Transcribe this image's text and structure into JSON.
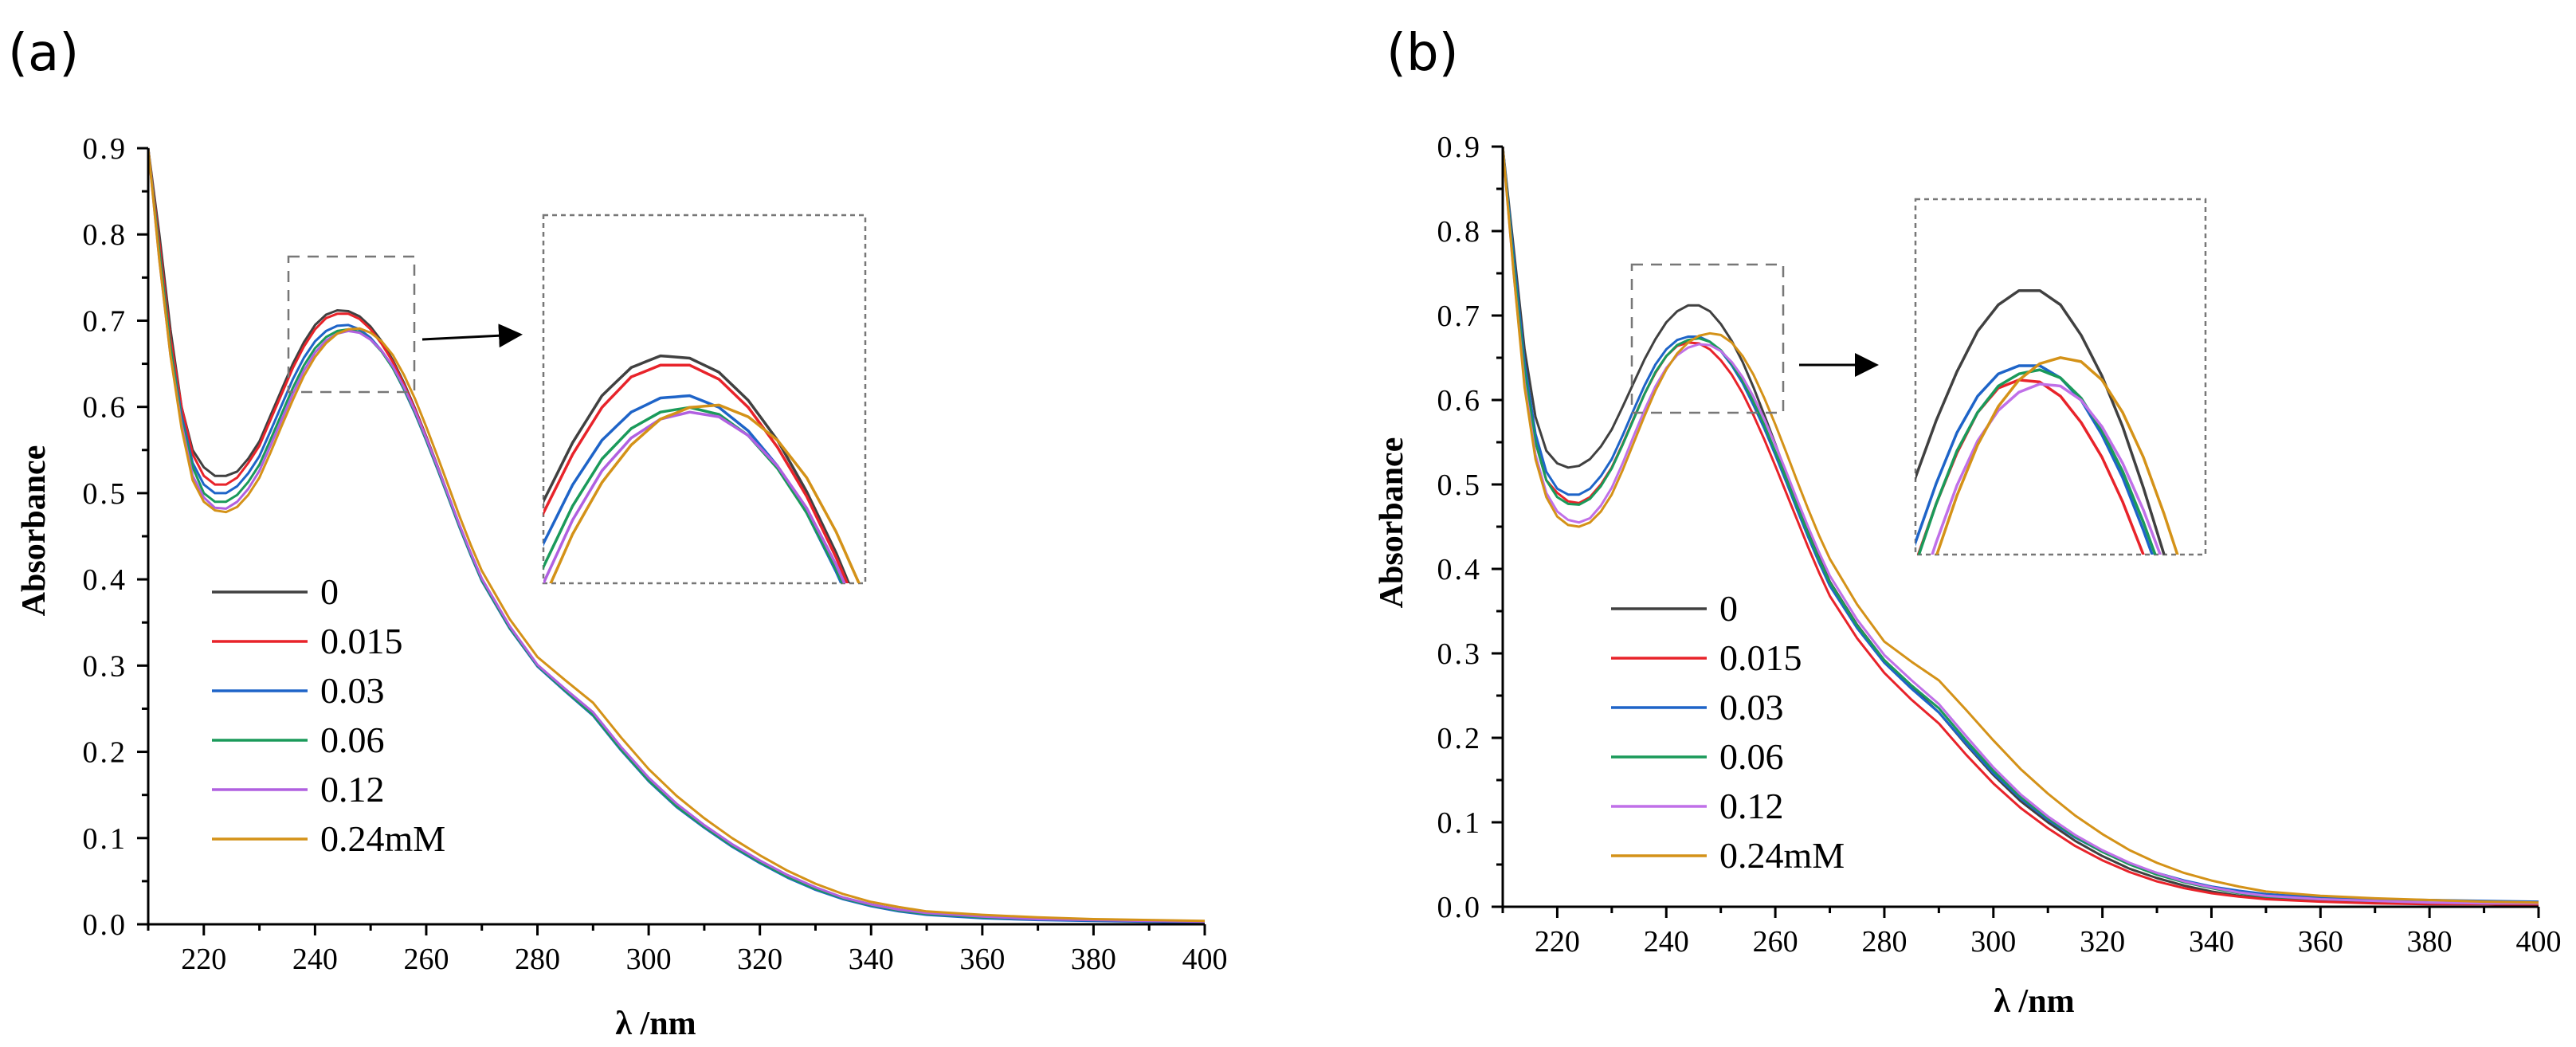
{
  "chart_data": [
    {
      "type": "line",
      "panel": "(a)",
      "xlabel": "λ /nm",
      "ylabel": "Absorbance",
      "xlim": [
        210,
        400
      ],
      "ylim": [
        0.0,
        0.9
      ],
      "xticks": [
        "220",
        "240",
        "260",
        "280",
        "300",
        "320",
        "340",
        "360",
        "380",
        "400"
      ],
      "yticks": [
        "0.0",
        "0.1",
        "0.2",
        "0.3",
        "0.4",
        "0.5",
        "0.6",
        "0.7",
        "0.8",
        "0.9"
      ],
      "legend_location": "left-middle",
      "inset": {
        "xrange": [
          236,
          258
        ],
        "yrange": [
          0.615,
          0.772
        ]
      },
      "x": [
        210,
        212,
        214,
        216,
        218,
        220,
        222,
        224,
        226,
        228,
        230,
        232,
        234,
        236,
        238,
        240,
        242,
        244,
        246,
        248,
        250,
        252,
        254,
        256,
        258,
        260,
        262,
        264,
        266,
        268,
        270,
        275,
        280,
        285,
        290,
        295,
        300,
        305,
        310,
        315,
        320,
        325,
        330,
        335,
        340,
        345,
        350,
        360,
        370,
        380,
        390,
        400
      ],
      "series": [
        {
          "name": "0",
          "color": "#404040",
          "values": [
            0.9,
            0.8,
            0.69,
            0.6,
            0.55,
            0.53,
            0.52,
            0.52,
            0.525,
            0.54,
            0.56,
            0.59,
            0.62,
            0.65,
            0.675,
            0.695,
            0.707,
            0.712,
            0.711,
            0.705,
            0.693,
            0.676,
            0.654,
            0.628,
            0.598,
            0.566,
            0.532,
            0.497,
            0.462,
            0.43,
            0.4,
            0.345,
            0.3,
            0.272,
            0.244,
            0.204,
            0.168,
            0.138,
            0.114,
            0.092,
            0.073,
            0.056,
            0.042,
            0.031,
            0.023,
            0.017,
            0.012,
            0.008,
            0.006,
            0.005,
            0.004,
            0.003
          ]
        },
        {
          "name": "0.015",
          "color": "#e8232a",
          "values": [
            0.9,
            0.79,
            0.68,
            0.6,
            0.545,
            0.52,
            0.51,
            0.51,
            0.518,
            0.535,
            0.555,
            0.585,
            0.615,
            0.645,
            0.67,
            0.69,
            0.703,
            0.708,
            0.708,
            0.702,
            0.69,
            0.673,
            0.652,
            0.626,
            0.597,
            0.565,
            0.531,
            0.496,
            0.461,
            0.429,
            0.399,
            0.344,
            0.3,
            0.271,
            0.243,
            0.203,
            0.167,
            0.137,
            0.113,
            0.091,
            0.072,
            0.055,
            0.041,
            0.03,
            0.022,
            0.016,
            0.012,
            0.008,
            0.006,
            0.005,
            0.004,
            0.003
          ]
        },
        {
          "name": "0.03",
          "color": "#1e64c8",
          "values": [
            0.9,
            0.78,
            0.67,
            0.59,
            0.535,
            0.51,
            0.5,
            0.5,
            0.508,
            0.523,
            0.543,
            0.572,
            0.602,
            0.632,
            0.657,
            0.676,
            0.688,
            0.694,
            0.695,
            0.69,
            0.68,
            0.665,
            0.645,
            0.62,
            0.592,
            0.561,
            0.528,
            0.494,
            0.46,
            0.428,
            0.398,
            0.343,
            0.299,
            0.27,
            0.242,
            0.202,
            0.166,
            0.136,
            0.112,
            0.09,
            0.071,
            0.054,
            0.04,
            0.029,
            0.021,
            0.015,
            0.011,
            0.007,
            0.005,
            0.004,
            0.003,
            0.002
          ]
        },
        {
          "name": "0.06",
          "color": "#1a9a5a",
          "values": [
            0.9,
            0.78,
            0.67,
            0.585,
            0.53,
            0.5,
            0.49,
            0.49,
            0.498,
            0.513,
            0.533,
            0.562,
            0.592,
            0.622,
            0.648,
            0.668,
            0.681,
            0.688,
            0.69,
            0.687,
            0.678,
            0.664,
            0.645,
            0.621,
            0.593,
            0.562,
            0.529,
            0.495,
            0.461,
            0.429,
            0.399,
            0.344,
            0.3,
            0.271,
            0.243,
            0.203,
            0.167,
            0.137,
            0.113,
            0.091,
            0.072,
            0.055,
            0.041,
            0.03,
            0.022,
            0.016,
            0.012,
            0.008,
            0.006,
            0.005,
            0.004,
            0.003
          ]
        },
        {
          "name": "0.12",
          "color": "#b060e0",
          "values": [
            0.9,
            0.77,
            0.66,
            0.58,
            0.52,
            0.495,
            0.483,
            0.482,
            0.49,
            0.505,
            0.526,
            0.555,
            0.585,
            0.615,
            0.642,
            0.663,
            0.677,
            0.685,
            0.688,
            0.686,
            0.678,
            0.665,
            0.647,
            0.623,
            0.595,
            0.564,
            0.531,
            0.497,
            0.463,
            0.431,
            0.401,
            0.346,
            0.301,
            0.273,
            0.246,
            0.206,
            0.17,
            0.14,
            0.115,
            0.093,
            0.074,
            0.057,
            0.043,
            0.031,
            0.023,
            0.017,
            0.013,
            0.009,
            0.006,
            0.005,
            0.004,
            0.003
          ]
        },
        {
          "name": "0.24mM",
          "color": "#d49218",
          "values": [
            0.9,
            0.77,
            0.66,
            0.575,
            0.515,
            0.49,
            0.48,
            0.478,
            0.484,
            0.498,
            0.518,
            0.547,
            0.578,
            0.608,
            0.636,
            0.658,
            0.674,
            0.685,
            0.69,
            0.691,
            0.686,
            0.676,
            0.66,
            0.637,
            0.609,
            0.577,
            0.543,
            0.508,
            0.473,
            0.44,
            0.41,
            0.354,
            0.31,
            0.283,
            0.257,
            0.217,
            0.18,
            0.149,
            0.123,
            0.1,
            0.08,
            0.062,
            0.047,
            0.035,
            0.026,
            0.02,
            0.015,
            0.011,
            0.008,
            0.006,
            0.005,
            0.004
          ]
        }
      ]
    },
    {
      "type": "line",
      "panel": "(b)",
      "xlabel": "λ /nm",
      "ylabel": "Absorbance",
      "xlim": [
        210,
        400
      ],
      "ylim": [
        0.0,
        0.9
      ],
      "xticks": [
        "220",
        "240",
        "260",
        "280",
        "300",
        "320",
        "340",
        "360",
        "380",
        "400"
      ],
      "yticks": [
        "0.0",
        "0.1",
        "0.2",
        "0.3",
        "0.4",
        "0.5",
        "0.6",
        "0.7",
        "0.8",
        "0.9"
      ],
      "legend_location": "left-middle",
      "inset": {
        "xrange": [
          234,
          262
        ],
        "yrange": [
          0.582,
          0.757
        ]
      },
      "x": [
        210,
        212,
        214,
        216,
        218,
        220,
        222,
        224,
        226,
        228,
        230,
        232,
        234,
        236,
        238,
        240,
        242,
        244,
        246,
        248,
        250,
        252,
        254,
        256,
        258,
        260,
        262,
        264,
        266,
        268,
        270,
        275,
        280,
        285,
        290,
        295,
        300,
        305,
        310,
        315,
        320,
        325,
        330,
        335,
        340,
        345,
        350,
        360,
        370,
        380,
        390,
        400
      ],
      "series": [
        {
          "name": "0",
          "color": "#404040",
          "values": [
            0.9,
            0.78,
            0.66,
            0.58,
            0.54,
            0.525,
            0.52,
            0.522,
            0.53,
            0.545,
            0.565,
            0.592,
            0.62,
            0.648,
            0.672,
            0.692,
            0.705,
            0.712,
            0.712,
            0.705,
            0.69,
            0.67,
            0.645,
            0.615,
            0.582,
            0.548,
            0.513,
            0.478,
            0.445,
            0.414,
            0.385,
            0.334,
            0.292,
            0.26,
            0.23,
            0.192,
            0.156,
            0.125,
            0.1,
            0.078,
            0.06,
            0.045,
            0.034,
            0.025,
            0.018,
            0.013,
            0.01,
            0.007,
            0.005,
            0.004,
            0.004,
            0.003
          ]
        },
        {
          "name": "0.015",
          "color": "#e8232a",
          "values": [
            0.9,
            0.76,
            0.63,
            0.55,
            0.505,
            0.49,
            0.48,
            0.478,
            0.485,
            0.5,
            0.52,
            0.548,
            0.578,
            0.607,
            0.632,
            0.652,
            0.664,
            0.668,
            0.667,
            0.66,
            0.647,
            0.63,
            0.608,
            0.582,
            0.553,
            0.522,
            0.49,
            0.458,
            0.426,
            0.396,
            0.368,
            0.318,
            0.277,
            0.245,
            0.217,
            0.18,
            0.146,
            0.117,
            0.093,
            0.072,
            0.055,
            0.041,
            0.03,
            0.022,
            0.016,
            0.012,
            0.009,
            0.006,
            0.004,
            0.003,
            0.003,
            0.002
          ]
        },
        {
          "name": "0.03",
          "color": "#1e64c8",
          "values": [
            0.9,
            0.77,
            0.645,
            0.56,
            0.515,
            0.495,
            0.488,
            0.488,
            0.495,
            0.51,
            0.53,
            0.558,
            0.588,
            0.617,
            0.642,
            0.66,
            0.671,
            0.675,
            0.675,
            0.669,
            0.658,
            0.641,
            0.62,
            0.594,
            0.566,
            0.535,
            0.503,
            0.47,
            0.438,
            0.408,
            0.38,
            0.33,
            0.289,
            0.258,
            0.23,
            0.193,
            0.158,
            0.128,
            0.103,
            0.082,
            0.065,
            0.051,
            0.04,
            0.031,
            0.024,
            0.019,
            0.015,
            0.011,
            0.009,
            0.008,
            0.007,
            0.006
          ]
        },
        {
          "name": "0.06",
          "color": "#1a9a5a",
          "values": [
            0.9,
            0.76,
            0.635,
            0.55,
            0.505,
            0.485,
            0.477,
            0.476,
            0.483,
            0.498,
            0.519,
            0.547,
            0.577,
            0.607,
            0.633,
            0.652,
            0.665,
            0.671,
            0.673,
            0.669,
            0.659,
            0.643,
            0.623,
            0.598,
            0.57,
            0.539,
            0.507,
            0.474,
            0.442,
            0.412,
            0.384,
            0.333,
            0.292,
            0.262,
            0.235,
            0.197,
            0.161,
            0.13,
            0.105,
            0.083,
            0.065,
            0.05,
            0.038,
            0.029,
            0.022,
            0.016,
            0.012,
            0.009,
            0.007,
            0.005,
            0.004,
            0.004
          ]
        },
        {
          "name": "0.12",
          "color": "#c070e8",
          "values": [
            0.9,
            0.75,
            0.62,
            0.535,
            0.49,
            0.468,
            0.458,
            0.455,
            0.46,
            0.475,
            0.496,
            0.525,
            0.557,
            0.588,
            0.616,
            0.638,
            0.653,
            0.662,
            0.666,
            0.665,
            0.658,
            0.645,
            0.627,
            0.604,
            0.577,
            0.547,
            0.515,
            0.482,
            0.45,
            0.42,
            0.392,
            0.34,
            0.298,
            0.268,
            0.24,
            0.202,
            0.165,
            0.133,
            0.107,
            0.085,
            0.067,
            0.052,
            0.04,
            0.03,
            0.023,
            0.017,
            0.013,
            0.009,
            0.007,
            0.005,
            0.004,
            0.004
          ]
        },
        {
          "name": "0.24mM",
          "color": "#d49218",
          "values": [
            0.9,
            0.75,
            0.615,
            0.53,
            0.485,
            0.462,
            0.452,
            0.45,
            0.455,
            0.468,
            0.488,
            0.517,
            0.549,
            0.581,
            0.611,
            0.636,
            0.655,
            0.668,
            0.676,
            0.679,
            0.677,
            0.668,
            0.652,
            0.63,
            0.602,
            0.571,
            0.538,
            0.504,
            0.471,
            0.44,
            0.412,
            0.358,
            0.314,
            0.29,
            0.268,
            0.233,
            0.197,
            0.163,
            0.134,
            0.108,
            0.086,
            0.067,
            0.052,
            0.04,
            0.031,
            0.024,
            0.018,
            0.013,
            0.01,
            0.008,
            0.006,
            0.005
          ]
        }
      ]
    }
  ]
}
